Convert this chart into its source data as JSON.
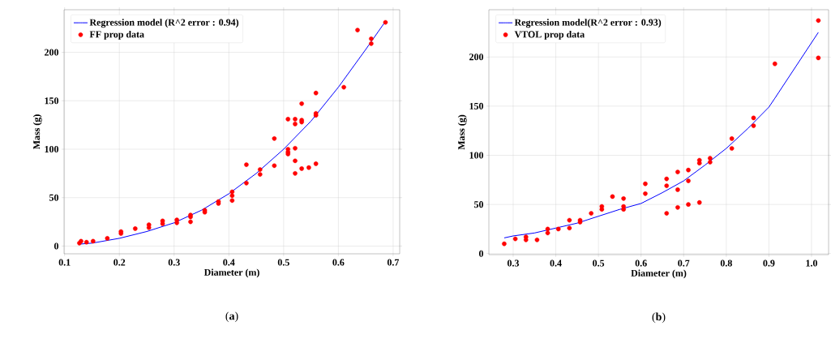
{
  "chart_data": [
    {
      "type": "scatter",
      "xlabel": "Diameter (m)",
      "ylabel": "Mass (g)",
      "annotations": [
        "(**a**)"
      ],
      "xlim": [
        0.099,
        0.712
      ],
      "ylim": [
        -8,
        244
      ],
      "xticks": [
        0.1,
        0.2,
        0.3,
        0.4,
        0.5,
        0.6,
        0.7
      ],
      "yticks": [
        0,
        50,
        100,
        150,
        200
      ],
      "grid": true,
      "legend": "top left",
      "series": [
        {
          "name": "Regression model (R^2 error : 0.94)",
          "type": "line",
          "marker": "none",
          "color": "#0000ff",
          "x": [
            0.127,
            0.15,
            0.2,
            0.25,
            0.3,
            0.35,
            0.4,
            0.45,
            0.5,
            0.55,
            0.6,
            0.65,
            0.686
          ],
          "values": [
            2,
            3,
            8,
            15,
            24,
            37,
            54,
            75,
            100,
            129,
            164,
            203,
            232
          ]
        },
        {
          "name": "FF prop data",
          "marker": "circle",
          "color": "#ff0000",
          "x": [
            0.127,
            0.13,
            0.14,
            0.152,
            0.178,
            0.203,
            0.203,
            0.229,
            0.254,
            0.254,
            0.279,
            0.279,
            0.305,
            0.305,
            0.33,
            0.33,
            0.33,
            0.356,
            0.356,
            0.381,
            0.381,
            0.406,
            0.406,
            0.406,
            0.432,
            0.432,
            0.457,
            0.457,
            0.483,
            0.483,
            0.508,
            0.508,
            0.508,
            0.508,
            0.521,
            0.521,
            0.521,
            0.521,
            0.521,
            0.533,
            0.533,
            0.533,
            0.533,
            0.546,
            0.559,
            0.559,
            0.559,
            0.559,
            0.61,
            0.635,
            0.66,
            0.66,
            0.686
          ],
          "values": [
            3,
            5,
            4,
            5,
            8,
            13,
            15,
            18,
            19,
            22,
            23,
            26,
            24,
            27,
            25,
            30,
            32,
            35,
            37,
            44,
            46,
            47,
            52,
            56,
            65,
            84,
            74,
            79,
            83,
            111,
            95,
            97,
            100,
            131,
            75,
            88,
            101,
            126,
            131,
            80,
            128,
            130,
            147,
            81,
            85,
            135,
            137,
            158,
            164,
            223,
            209,
            214,
            231
          ]
        }
      ]
    },
    {
      "type": "scatter",
      "xlabel": "Diameter (m)",
      "ylabel": "Mass (g)",
      "annotations": [
        "(**b**)"
      ],
      "xlim": [
        0.243,
        1.04
      ],
      "ylim": [
        -1,
        248
      ],
      "xticks": [
        0.3,
        0.4,
        0.5,
        0.6,
        0.7,
        0.8,
        0.9,
        {
          "value": 1.0,
          "label": "1.0"
        }
      ],
      "yticks": [
        0,
        50,
        100,
        150,
        200
      ],
      "grid": true,
      "legend": "top left",
      "series": [
        {
          "name": "Regression model(R^2 error : 0.93)",
          "type": "line",
          "marker": "none",
          "color": "#0000ff",
          "x": [
            0.279,
            0.3,
            0.35,
            0.4,
            0.45,
            0.5,
            0.55,
            0.6,
            0.65,
            0.7,
            0.75,
            0.8,
            0.85,
            0.9,
            0.914,
            1.016
          ],
          "values": [
            16,
            18,
            21,
            26,
            31,
            38,
            45,
            51,
            62,
            74,
            90,
            107,
            127,
            149,
            158,
            225
          ]
        },
        {
          "name": "VTOL prop data",
          "marker": "circle",
          "color": "#ff0000",
          "x": [
            0.279,
            0.305,
            0.33,
            0.33,
            0.356,
            0.381,
            0.381,
            0.406,
            0.432,
            0.432,
            0.457,
            0.457,
            0.483,
            0.508,
            0.508,
            0.533,
            0.559,
            0.559,
            0.559,
            0.61,
            0.61,
            0.66,
            0.66,
            0.66,
            0.686,
            0.686,
            0.686,
            0.711,
            0.711,
            0.711,
            0.737,
            0.737,
            0.737,
            0.762,
            0.762,
            0.813,
            0.813,
            0.864,
            0.864,
            0.914,
            1.016,
            1.016
          ],
          "values": [
            10,
            15,
            17,
            14,
            14,
            25,
            21,
            25,
            34,
            26,
            34,
            32,
            41,
            48,
            45,
            58,
            56,
            48,
            45,
            71,
            61,
            76,
            69,
            41,
            83,
            65,
            47,
            85,
            74,
            50,
            95,
            92,
            52,
            97,
            93,
            117,
            107,
            138,
            130,
            193,
            237,
            199
          ]
        }
      ]
    }
  ]
}
